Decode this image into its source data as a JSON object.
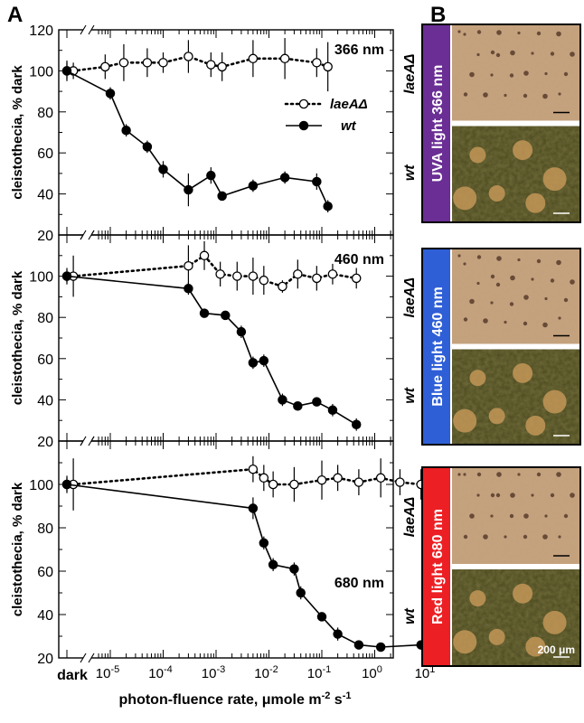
{
  "panel_a_letter": "A",
  "panel_b_letter": "B",
  "xlabel_main": "photon-fluence rate, μmole m",
  "xlabel_sup1": "-2",
  "xlabel_mid": " s",
  "xlabel_sup2": "-1",
  "scale_bar_label": "200 μm",
  "chart_data": [
    {
      "type": "scatter",
      "title": "366 nm",
      "ylabel": "cleistothecia, % dark",
      "ylim": [
        20,
        120
      ],
      "yticks": [
        20,
        40,
        60,
        80,
        100,
        120
      ],
      "x_scale": "log",
      "xlim": [
        1e-06,
        20
      ],
      "series": [
        {
          "name": "laeAΔ",
          "marker": "open-circle",
          "line": "dotted",
          "points": [
            {
              "x": "dark",
              "y": 100,
              "err": 5
            },
            {
              "x": 2e-06,
              "y": 100,
              "err": 4
            },
            {
              "x": 8e-06,
              "y": 102,
              "err": 6
            },
            {
              "x": 1.8e-05,
              "y": 104,
              "err": 9
            },
            {
              "x": 5e-05,
              "y": 104,
              "err": 7
            },
            {
              "x": 0.0001,
              "y": 104,
              "err": 5
            },
            {
              "x": 0.0003,
              "y": 107,
              "err": 8
            },
            {
              "x": 0.0008,
              "y": 103,
              "err": 6
            },
            {
              "x": 0.0013,
              "y": 102,
              "err": 7
            },
            {
              "x": 0.005,
              "y": 106,
              "err": 9
            },
            {
              "x": 0.02,
              "y": 106,
              "err": 10
            },
            {
              "x": 0.08,
              "y": 104,
              "err": 7
            },
            {
              "x": 0.13,
              "y": 102,
              "err": 12
            }
          ]
        },
        {
          "name": "wt",
          "marker": "filled-circle",
          "line": "solid",
          "points": [
            {
              "x": "dark",
              "y": 100,
              "err": 4
            },
            {
              "x": 1e-05,
              "y": 89,
              "err": 3
            },
            {
              "x": 2e-05,
              "y": 71,
              "err": 3
            },
            {
              "x": 5e-05,
              "y": 63,
              "err": 3
            },
            {
              "x": 0.0001,
              "y": 52,
              "err": 4
            },
            {
              "x": 0.0003,
              "y": 42,
              "err": 8
            },
            {
              "x": 0.0008,
              "y": 49,
              "err": 4
            },
            {
              "x": 0.0013,
              "y": 39,
              "err": 2
            },
            {
              "x": 0.005,
              "y": 44,
              "err": 3
            },
            {
              "x": 0.02,
              "y": 48,
              "err": 3
            },
            {
              "x": 0.08,
              "y": 46,
              "err": 4
            },
            {
              "x": 0.13,
              "y": 34,
              "err": 3
            }
          ]
        }
      ]
    },
    {
      "type": "scatter",
      "title": "460 nm",
      "ylabel": "cleistothecia, % dark",
      "ylim": [
        20,
        120
      ],
      "yticks": [
        20,
        40,
        60,
        80,
        100
      ],
      "x_scale": "log",
      "xlim": [
        1e-06,
        20
      ],
      "series": [
        {
          "name": "laeAΔ",
          "marker": "open-circle",
          "line": "dotted",
          "points": [
            {
              "x": "dark",
              "y": 100,
              "err": 4
            },
            {
              "x": 2e-06,
              "y": 100,
              "err": 10
            },
            {
              "x": 0.0003,
              "y": 105,
              "err": 10
            },
            {
              "x": 0.0006,
              "y": 110,
              "err": 7
            },
            {
              "x": 0.0012,
              "y": 101,
              "err": 6
            },
            {
              "x": 0.0025,
              "y": 100,
              "err": 7
            },
            {
              "x": 0.005,
              "y": 100,
              "err": 9
            },
            {
              "x": 0.008,
              "y": 98,
              "err": 7
            },
            {
              "x": 0.018,
              "y": 95,
              "err": 3
            },
            {
              "x": 0.035,
              "y": 101,
              "err": 7
            },
            {
              "x": 0.08,
              "y": 99,
              "err": 6
            },
            {
              "x": 0.16,
              "y": 101,
              "err": 5
            },
            {
              "x": 0.45,
              "y": 99,
              "err": 5
            }
          ]
        },
        {
          "name": "wt",
          "marker": "filled-circle",
          "line": "solid",
          "points": [
            {
              "x": "dark",
              "y": 100,
              "err": 3
            },
            {
              "x": 0.0003,
              "y": 94,
              "err": 3
            },
            {
              "x": 0.0006,
              "y": 82,
              "err": 2
            },
            {
              "x": 0.0015,
              "y": 81,
              "err": 2
            },
            {
              "x": 0.003,
              "y": 73,
              "err": 3
            },
            {
              "x": 0.005,
              "y": 58,
              "err": 3
            },
            {
              "x": 0.008,
              "y": 59,
              "err": 3
            },
            {
              "x": 0.018,
              "y": 40,
              "err": 3
            },
            {
              "x": 0.035,
              "y": 37,
              "err": 2
            },
            {
              "x": 0.08,
              "y": 39,
              "err": 2
            },
            {
              "x": 0.16,
              "y": 35,
              "err": 3
            },
            {
              "x": 0.45,
              "y": 28,
              "err": 3
            }
          ]
        }
      ]
    },
    {
      "type": "scatter",
      "title": "680 nm",
      "ylabel": "cleistothecia, % dark",
      "ylim": [
        20,
        120
      ],
      "yticks": [
        20,
        40,
        60,
        80,
        100
      ],
      "x_scale": "log",
      "xlim": [
        1e-06,
        20
      ],
      "xtick_labels": [
        "dark",
        "10-5",
        "10-4",
        "10-3",
        "10-2",
        "10-1",
        "100",
        "101"
      ],
      "series": [
        {
          "name": "laeAΔ",
          "marker": "open-circle",
          "line": "dotted",
          "points": [
            {
              "x": "dark",
              "y": 100,
              "err": 4
            },
            {
              "x": 2e-06,
              "y": 100,
              "err": 12
            },
            {
              "x": 0.005,
              "y": 107,
              "err": 6
            },
            {
              "x": 0.008,
              "y": 103,
              "err": 6
            },
            {
              "x": 0.012,
              "y": 100,
              "err": 6
            },
            {
              "x": 0.03,
              "y": 100,
              "err": 8
            },
            {
              "x": 0.1,
              "y": 102,
              "err": 9
            },
            {
              "x": 0.2,
              "y": 103,
              "err": 6
            },
            {
              "x": 0.5,
              "y": 101,
              "err": 6
            },
            {
              "x": 1.3,
              "y": 103,
              "err": 9
            },
            {
              "x": 3,
              "y": 101,
              "err": 6
            },
            {
              "x": 7.5,
              "y": 100,
              "err": 7
            },
            {
              "x": 12,
              "y": 98,
              "err": 6
            }
          ]
        },
        {
          "name": "wt",
          "marker": "filled-circle",
          "line": "solid",
          "points": [
            {
              "x": "dark",
              "y": 100,
              "err": 3
            },
            {
              "x": 0.005,
              "y": 89,
              "err": 5
            },
            {
              "x": 0.008,
              "y": 73,
              "err": 3
            },
            {
              "x": 0.012,
              "y": 63,
              "err": 3
            },
            {
              "x": 0.03,
              "y": 61,
              "err": 3
            },
            {
              "x": 0.04,
              "y": 50,
              "err": 3
            },
            {
              "x": 0.1,
              "y": 39,
              "err": 2
            },
            {
              "x": 0.2,
              "y": 31,
              "err": 3
            },
            {
              "x": 0.5,
              "y": 26,
              "err": 2
            },
            {
              "x": 1.3,
              "y": 25,
              "err": 2
            },
            {
              "x": 7.5,
              "y": 26,
              "err": 2
            },
            {
              "x": 12,
              "y": 26,
              "err": 2
            }
          ]
        }
      ]
    }
  ],
  "legend": {
    "items": [
      "laeAΔ",
      "wt"
    ],
    "placement": "top-right of 366 nm panel"
  },
  "photo_panels": [
    {
      "band_label": "UVA light  366 nm",
      "band_color": "#6a2e94",
      "row_labels": [
        "laeAΔ",
        "wt"
      ]
    },
    {
      "band_label": "Blue light  460 nm",
      "band_color": "#2f5fd6",
      "row_labels": [
        "laeAΔ",
        "wt"
      ]
    },
    {
      "band_label": "Red light  680 nm",
      "band_color": "#ec2024",
      "row_labels": [
        "laeAΔ",
        "wt"
      ]
    }
  ]
}
